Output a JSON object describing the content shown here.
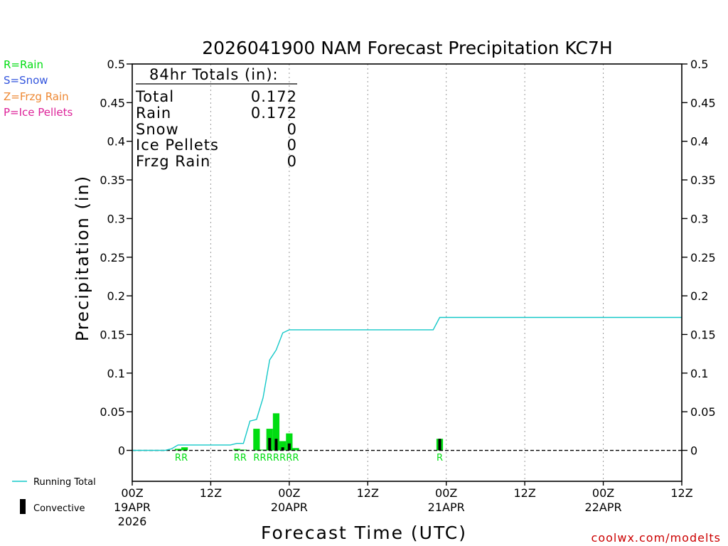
{
  "chart_data": {
    "type": "bar",
    "title": "2026041900 NAM Forecast Precipitation KC7H",
    "xlabel": "Forecast Time (UTC)",
    "ylabel": "Precipitation (in)",
    "ylim": [
      -0.04,
      0.5
    ],
    "xlim_hours": [
      0,
      84
    ],
    "y_ticks": [
      "0",
      "0.05",
      "0.1",
      "0.15",
      "0.2",
      "0.25",
      "0.3",
      "0.35",
      "0.4",
      "0.45",
      "0.5"
    ],
    "y_tick_values": [
      0,
      0.05,
      0.1,
      0.15,
      0.2,
      0.25,
      0.3,
      0.35,
      0.4,
      0.45,
      0.5
    ],
    "x_ticks": [
      {
        "hour": 0,
        "time": "00Z",
        "date": "19APR",
        "year": "2026"
      },
      {
        "hour": 12,
        "time": "12Z",
        "date": "",
        "year": ""
      },
      {
        "hour": 24,
        "time": "00Z",
        "date": "20APR",
        "year": ""
      },
      {
        "hour": 36,
        "time": "12Z",
        "date": "",
        "year": ""
      },
      {
        "hour": 48,
        "time": "00Z",
        "date": "21APR",
        "year": ""
      },
      {
        "hour": 60,
        "time": "12Z",
        "date": "",
        "year": ""
      },
      {
        "hour": 72,
        "time": "00Z",
        "date": "22APR",
        "year": ""
      },
      {
        "hour": 84,
        "time": "12Z",
        "date": "",
        "year": ""
      }
    ],
    "series": [
      {
        "name": "Precipitation",
        "color": "#00dd11",
        "bars": [
          {
            "hour": 7,
            "value": 0.002,
            "convective": 0,
            "ptype": "R"
          },
          {
            "hour": 8,
            "value": 0.004,
            "convective": 0,
            "ptype": "R"
          },
          {
            "hour": 16,
            "value": 0.002,
            "convective": 0,
            "ptype": "R"
          },
          {
            "hour": 17,
            "value": 0.001,
            "convective": 0,
            "ptype": "R"
          },
          {
            "hour": 19,
            "value": 0.028,
            "convective": 0,
            "ptype": "R"
          },
          {
            "hour": 20,
            "value": 0.001,
            "convective": 0,
            "ptype": "R"
          },
          {
            "hour": 21,
            "value": 0.028,
            "convective": 0.016,
            "ptype": "R"
          },
          {
            "hour": 22,
            "value": 0.048,
            "convective": 0.015,
            "ptype": "R"
          },
          {
            "hour": 23,
            "value": 0.012,
            "convective": 0.004,
            "ptype": "R"
          },
          {
            "hour": 24,
            "value": 0.022,
            "convective": 0.009,
            "ptype": "R"
          },
          {
            "hour": 25,
            "value": 0.003,
            "convective": 0,
            "ptype": "R"
          },
          {
            "hour": 47,
            "value": 0.015,
            "convective": 0.015,
            "ptype": "R"
          }
        ]
      },
      {
        "name": "Running Total",
        "color": "#14c8c8",
        "points": [
          [
            0,
            0
          ],
          [
            5,
            0
          ],
          [
            6,
            0.002
          ],
          [
            7,
            0.007
          ],
          [
            8,
            0.007
          ],
          [
            9,
            0.007
          ],
          [
            15,
            0.007
          ],
          [
            16,
            0.009
          ],
          [
            17,
            0.009
          ],
          [
            18,
            0.038
          ],
          [
            19,
            0.04
          ],
          [
            20,
            0.068
          ],
          [
            21,
            0.117
          ],
          [
            22,
            0.13
          ],
          [
            23,
            0.152
          ],
          [
            24,
            0.156
          ],
          [
            46,
            0.156
          ],
          [
            47,
            0.172
          ],
          [
            84,
            0.172
          ]
        ]
      }
    ],
    "totals_box": {
      "header": "84hr Totals (in):",
      "rows": [
        {
          "label": "Total",
          "value": "0.172"
        },
        {
          "label": "Rain",
          "value": "0.172"
        },
        {
          "label": "Snow",
          "value": "0"
        },
        {
          "label": "Ice Pellets",
          "value": "0"
        },
        {
          "label": "Frzg Rain",
          "value": "0"
        }
      ]
    },
    "ptype_legend": [
      {
        "label": "R=Rain",
        "color": "#00dd11"
      },
      {
        "label": "S=Snow",
        "color": "#3355dd"
      },
      {
        "label": "Z=Frzg Rain",
        "color": "#ee8833"
      },
      {
        "label": "P=Ice Pellets",
        "color": "#dd2299"
      }
    ],
    "legend": [
      {
        "label": "Running Total",
        "color": "#14c8c8"
      },
      {
        "label": "Convective",
        "color": "#000000"
      }
    ],
    "credit": "coolwx.com/modelts"
  }
}
